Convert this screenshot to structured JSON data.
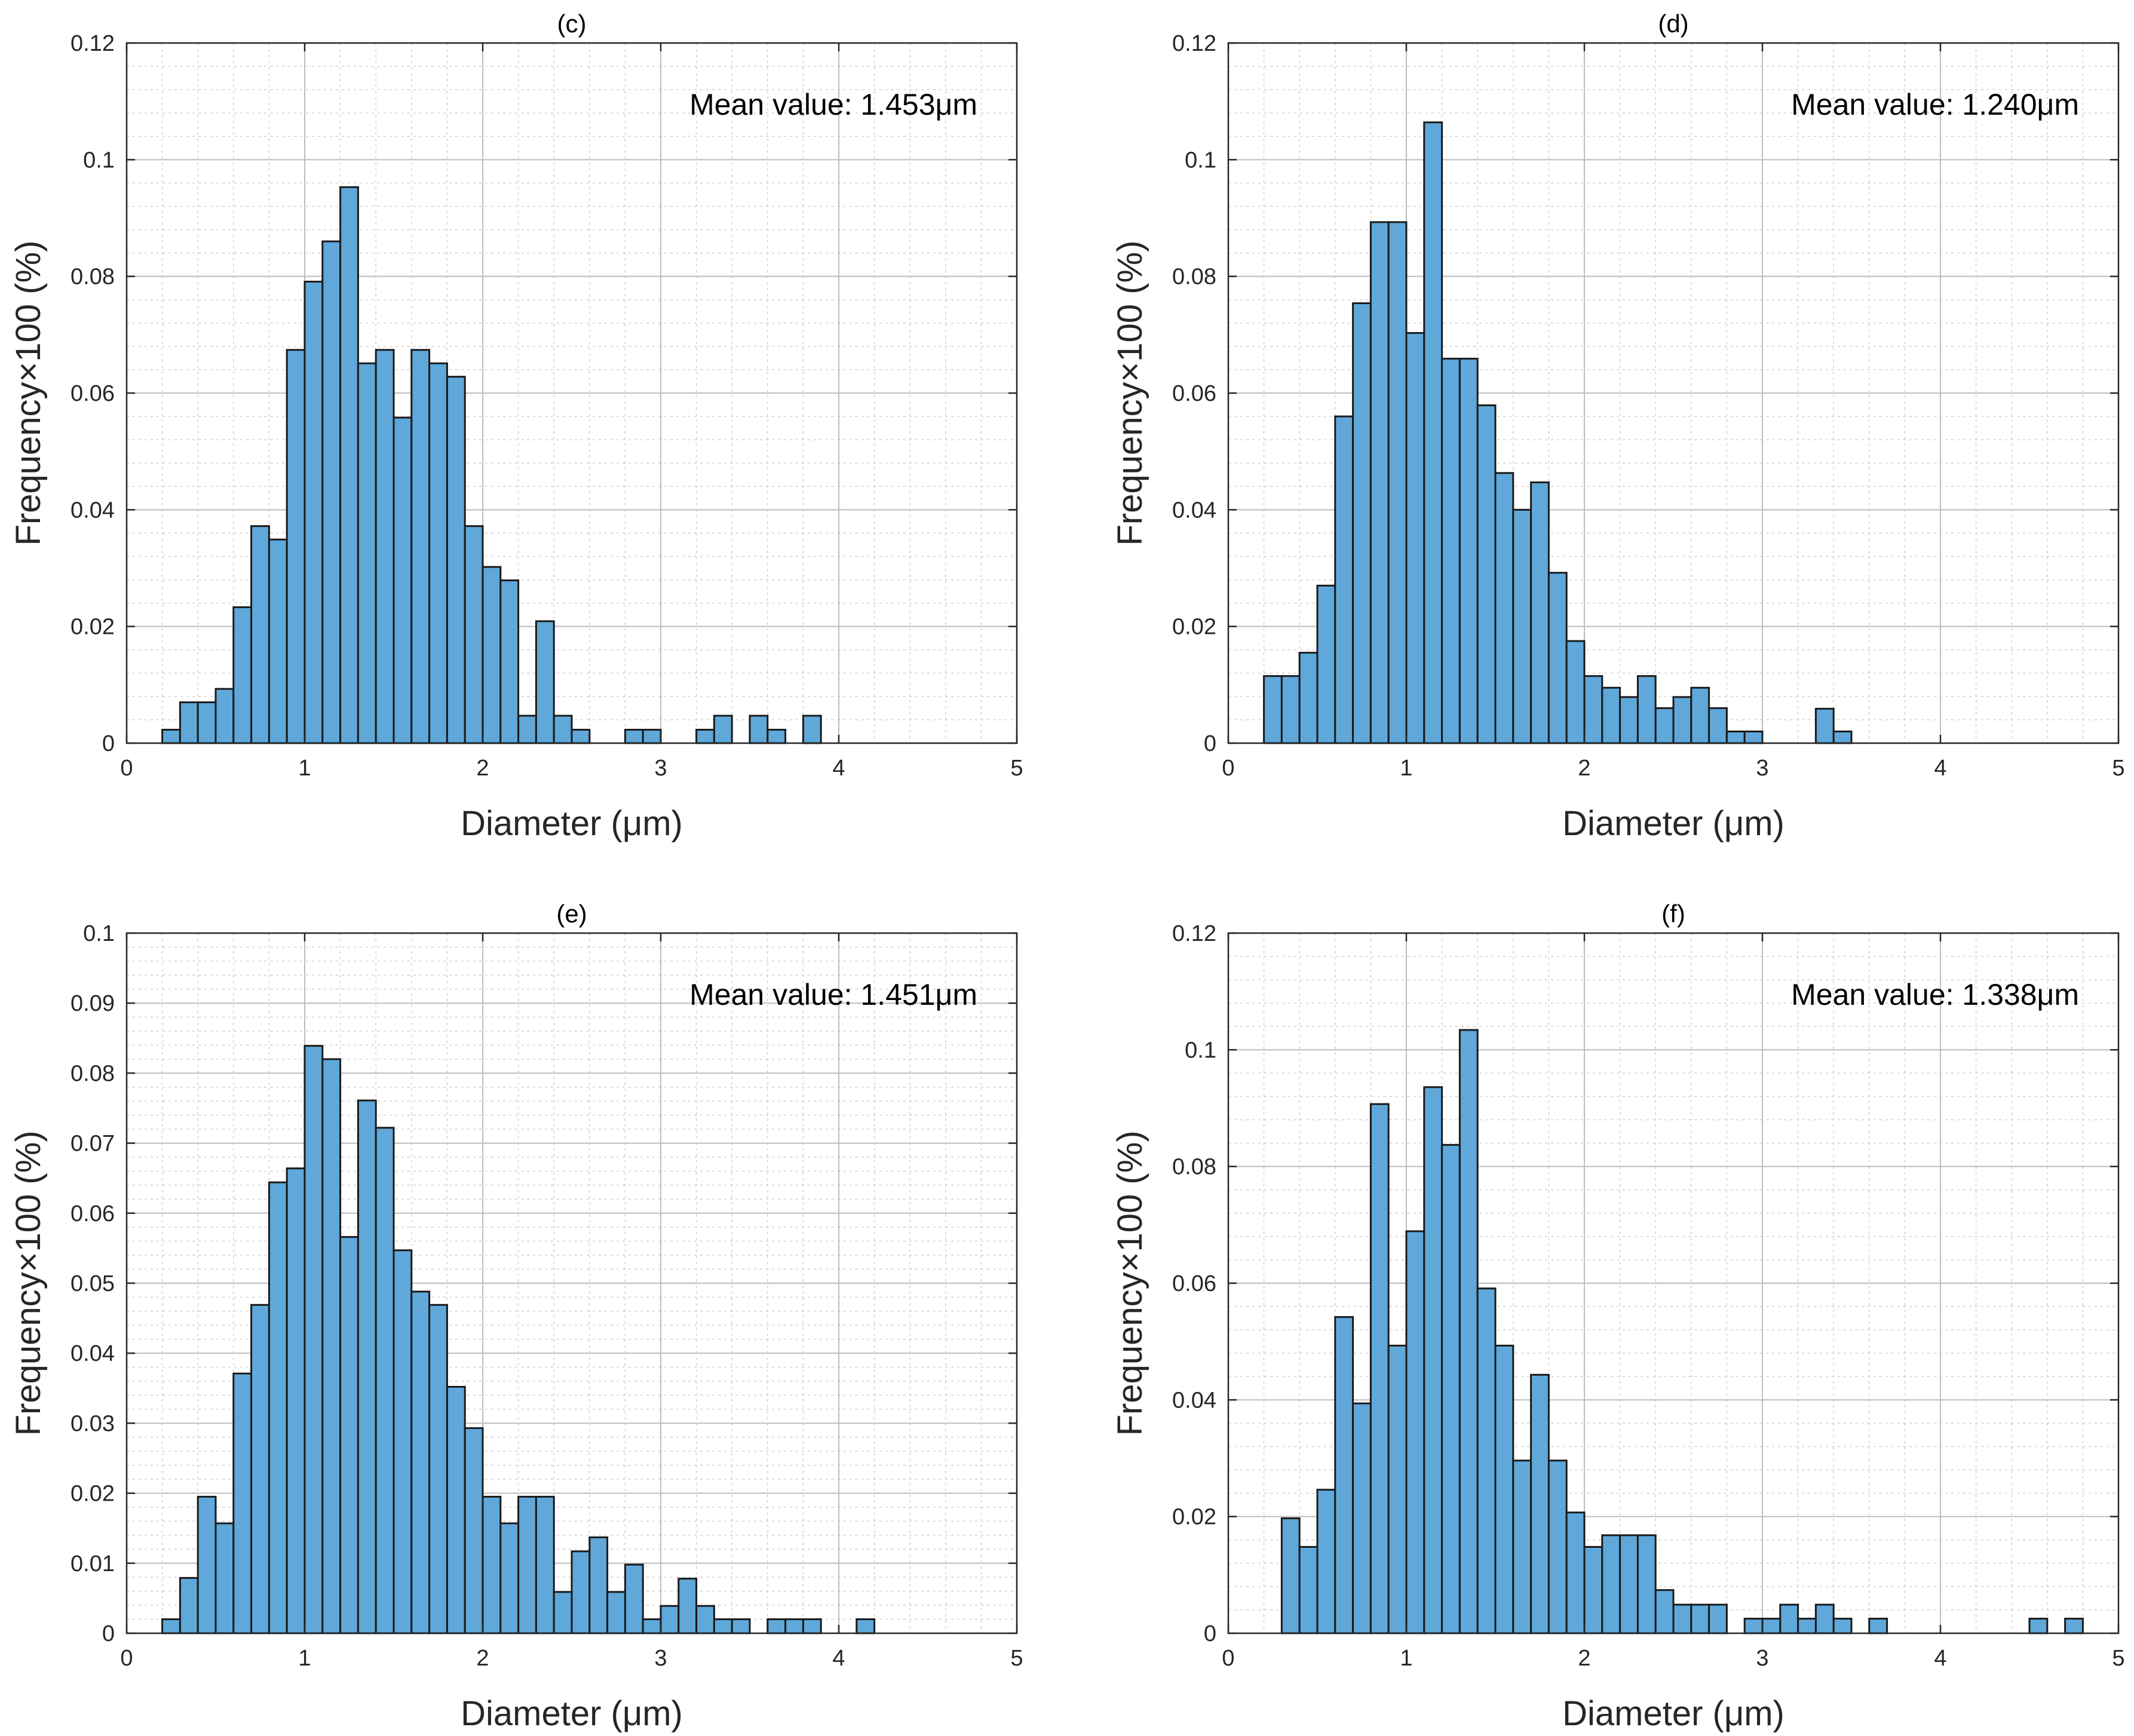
{
  "colors": {
    "bar_fill": "#5fa8d9",
    "bar_edge": "#1a1a1a",
    "background": "#ffffff"
  },
  "chart_data": [
    {
      "type": "bar",
      "title": "(c)",
      "annotation": "Mean value: 1.453μm",
      "xlabel": "Diameter (μm)",
      "ylabel": "Frequency×100 (%)",
      "xlim": [
        0,
        5
      ],
      "ylim": [
        0,
        0.12
      ],
      "xticks": [
        0,
        1,
        2,
        3,
        4,
        5
      ],
      "xtick_labels": [
        "0",
        "1",
        "2",
        "3",
        "4",
        "5"
      ],
      "yticks": [
        0,
        0.02,
        0.04,
        0.06,
        0.08,
        0.1,
        0.12
      ],
      "ytick_labels": [
        "0",
        "0.02",
        "0.04",
        "0.06",
        "0.08",
        "0.1",
        "0.12"
      ],
      "grid": true,
      "bin_start": 0.2,
      "bin_width": 0.1,
      "values": [
        0.0023,
        0.007,
        0.007,
        0.0093,
        0.0233,
        0.0372,
        0.0349,
        0.0674,
        0.0791,
        0.086,
        0.0953,
        0.0651,
        0.0674,
        0.0558,
        0.0674,
        0.0651,
        0.0628,
        0.0372,
        0.0302,
        0.0279,
        0.0047,
        0.0209,
        0.0047,
        0.0023,
        0,
        0,
        0.0023,
        0.0023,
        0,
        0,
        0.0023,
        0.0047,
        0,
        0.0047,
        0.0023,
        0,
        0.0047
      ]
    },
    {
      "type": "bar",
      "title": "(d)",
      "annotation": "Mean value: 1.240μm",
      "xlabel": "Diameter (μm)",
      "ylabel": "Frequency×100 (%)",
      "xlim": [
        0,
        5
      ],
      "ylim": [
        0,
        0.12
      ],
      "xticks": [
        0,
        1,
        2,
        3,
        4,
        5
      ],
      "xtick_labels": [
        "0",
        "1",
        "2",
        "3",
        "4",
        "5"
      ],
      "yticks": [
        0,
        0.02,
        0.04,
        0.06,
        0.08,
        0.1,
        0.12
      ],
      "ytick_labels": [
        "0",
        "0.02",
        "0.04",
        "0.06",
        "0.08",
        "0.1",
        "0.12"
      ],
      "grid": true,
      "bin_start": 0.2,
      "bin_width": 0.1,
      "values": [
        0.0115,
        0.0115,
        0.0155,
        0.027,
        0.056,
        0.0754,
        0.0893,
        0.0893,
        0.0703,
        0.1064,
        0.0659,
        0.0659,
        0.0579,
        0.0463,
        0.04,
        0.0447,
        0.0292,
        0.0175,
        0.0115,
        0.0095,
        0.0079,
        0.0115,
        0.006,
        0.0079,
        0.0095,
        0.006,
        0.002,
        0.002,
        0,
        0,
        0,
        0.0059,
        0.002
      ]
    },
    {
      "type": "bar",
      "title": "(e)",
      "annotation": "Mean value: 1.451μm",
      "xlabel": "Diameter (μm)",
      "ylabel": "Frequency×100 (%)",
      "xlim": [
        0,
        5
      ],
      "ylim": [
        0,
        0.1
      ],
      "xticks": [
        0,
        1,
        2,
        3,
        4,
        5
      ],
      "xtick_labels": [
        "0",
        "1",
        "2",
        "3",
        "4",
        "5"
      ],
      "yticks": [
        0,
        0.01,
        0.02,
        0.03,
        0.04,
        0.05,
        0.06,
        0.07,
        0.08,
        0.09,
        0.1
      ],
      "ytick_labels": [
        "0",
        "0.01",
        "0.02",
        "0.03",
        "0.04",
        "0.05",
        "0.06",
        "0.07",
        "0.08",
        "0.09",
        "0.1"
      ],
      "grid": true,
      "bin_start": 0.2,
      "bin_width": 0.1,
      "values": [
        0.002,
        0.0079,
        0.0195,
        0.0157,
        0.0371,
        0.0469,
        0.0644,
        0.0664,
        0.0839,
        0.082,
        0.0566,
        0.0761,
        0.0722,
        0.0547,
        0.0488,
        0.0469,
        0.0352,
        0.0293,
        0.0195,
        0.0157,
        0.0195,
        0.0195,
        0.0059,
        0.0117,
        0.0137,
        0.0059,
        0.0098,
        0.002,
        0.0039,
        0.0078,
        0.0039,
        0.002,
        0.002,
        0,
        0.002,
        0.002,
        0.002,
        0,
        0,
        0.002
      ]
    },
    {
      "type": "bar",
      "title": "(f)",
      "annotation": "Mean value: 1.338μm",
      "xlabel": "Diameter (μm)",
      "ylabel": "Frequency×100 (%)",
      "xlim": [
        0,
        5
      ],
      "ylim": [
        0,
        0.12
      ],
      "xticks": [
        0,
        1,
        2,
        3,
        4,
        5
      ],
      "xtick_labels": [
        "0",
        "1",
        "2",
        "3",
        "4",
        "5"
      ],
      "yticks": [
        0,
        0.02,
        0.04,
        0.06,
        0.08,
        0.1,
        0.12
      ],
      "ytick_labels": [
        "0",
        "0.02",
        "0.04",
        "0.06",
        "0.08",
        "0.1",
        "0.12"
      ],
      "grid": true,
      "bin_start": 0.3,
      "bin_width": 0.1,
      "values": [
        0.0197,
        0.0148,
        0.0246,
        0.0542,
        0.0394,
        0.0907,
        0.0493,
        0.0689,
        0.0936,
        0.0837,
        0.1034,
        0.0591,
        0.0493,
        0.0296,
        0.0443,
        0.0296,
        0.0207,
        0.0148,
        0.0168,
        0.0168,
        0.0168,
        0.0074,
        0.0049,
        0.0049,
        0.0049,
        0,
        0.0025,
        0.0025,
        0.0049,
        0.0025,
        0.0049,
        0.0025,
        0,
        0.0025,
        0,
        0,
        0,
        0,
        0,
        0,
        0,
        0,
        0.0025,
        0,
        0.0025
      ]
    }
  ]
}
